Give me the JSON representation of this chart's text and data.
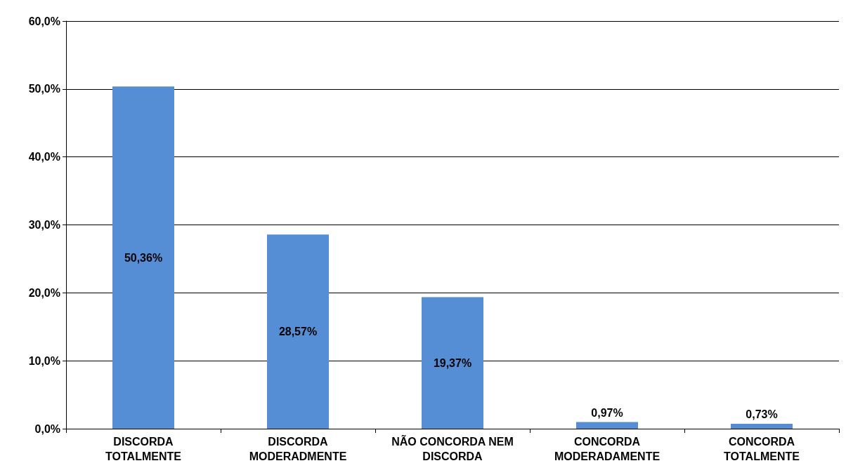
{
  "chart_data": {
    "type": "bar",
    "categories": [
      "DISCORDA\nTOTALMENTE",
      "DISCORDA\nMODERADMENTE",
      "NÃO CONCORDA NEM\nDISCORDA",
      "CONCORDA\nMODERADAMENTE",
      "CONCORDA\nTOTALMENTE"
    ],
    "values": [
      50.36,
      28.57,
      19.37,
      0.97,
      0.73
    ],
    "value_labels": [
      "50,36%",
      "28,57%",
      "19,37%",
      "0,97%",
      "0,73%"
    ],
    "color": "#558ed5",
    "ylim": [
      0,
      60
    ],
    "yticks": [
      {
        "value": 0,
        "label": "0,0%"
      },
      {
        "value": 10,
        "label": "10,0%"
      },
      {
        "value": 20,
        "label": "20,0%"
      },
      {
        "value": 30,
        "label": "30,0%"
      },
      {
        "value": 40,
        "label": "40,0%"
      },
      {
        "value": 50,
        "label": "50,0%"
      },
      {
        "value": 60,
        "label": "60,0%"
      }
    ],
    "grid": "y"
  }
}
